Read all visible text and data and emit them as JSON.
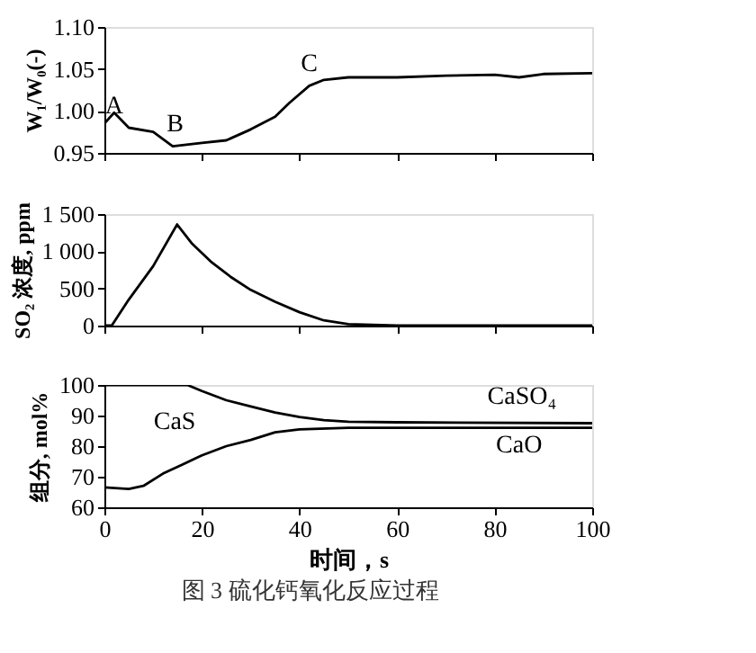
{
  "chart_data": [
    {
      "type": "line",
      "ylabel": "W₁/W₀(-)",
      "xlim": [
        0,
        100
      ],
      "xticks": [
        0,
        20,
        40,
        60,
        80,
        100
      ],
      "ylim": [
        0.95,
        1.1
      ],
      "yticks": [
        {
          "value": 0.95,
          "label": "0.95"
        },
        {
          "value": 1.0,
          "label": "1.00"
        },
        {
          "value": 1.05,
          "label": "1.05"
        },
        {
          "value": 1.1,
          "label": "1.10"
        }
      ],
      "tick_labels": "y",
      "grid": false,
      "x": [
        0,
        2,
        5,
        10,
        14,
        20,
        25,
        30,
        35,
        38,
        42,
        45,
        50,
        60,
        70,
        80,
        85,
        90,
        100
      ],
      "series": [
        {
          "color": "#000000",
          "values": [
            0.985,
            0.998,
            0.98,
            0.975,
            0.958,
            0.962,
            0.965,
            0.978,
            0.993,
            1.01,
            1.03,
            1.037,
            1.04,
            1.04,
            1.042,
            1.043,
            1.04,
            1.044,
            1.045
          ]
        }
      ],
      "annotations": [
        "A",
        "B",
        "C"
      ]
    },
    {
      "type": "line",
      "ylabel": "SO₂ 浓度, ppm",
      "xlim": [
        0,
        100
      ],
      "xticks": [
        0,
        20,
        40,
        60,
        80,
        100
      ],
      "ylim": [
        0,
        1500
      ],
      "yticks": [
        0,
        500,
        {
          "value": 1000,
          "label": "1 000"
        },
        {
          "value": 1500,
          "label": "1 500"
        }
      ],
      "tick_labels": "y",
      "grid": false,
      "x": [
        0,
        1.5,
        5,
        10,
        14.9,
        18,
        22,
        26,
        30,
        35,
        40,
        45,
        50,
        60,
        100
      ],
      "series": [
        {
          "color": "#000000",
          "values": [
            0,
            0,
            350,
            800,
            1360,
            1100,
            850,
            650,
            480,
            320,
            180,
            70,
            20,
            0,
            0
          ]
        }
      ]
    },
    {
      "type": "line",
      "ylabel": "组分, mol%",
      "xlabel": "时间，s",
      "xlim": [
        0,
        100
      ],
      "xticks": [
        0,
        20,
        40,
        60,
        80,
        100
      ],
      "ylim": [
        60,
        100
      ],
      "yticks": [
        60,
        70,
        80,
        90,
        100
      ],
      "grid": false,
      "series": [
        {
          "color": "#000000",
          "x": [
            0,
            5,
            8,
            12,
            16,
            20,
            25,
            30,
            35,
            40,
            50,
            100
          ],
          "values": [
            66.5,
            66,
            67,
            71,
            74,
            77,
            80,
            82,
            84.5,
            85.5,
            86,
            86
          ]
        },
        {
          "color": "#000000",
          "x": [
            0,
            17,
            20,
            25,
            30,
            35,
            40,
            45,
            50,
            60,
            100
          ],
          "values": [
            100,
            100,
            98,
            95,
            93,
            91,
            89.5,
            88.5,
            88,
            87.8,
            87.5
          ]
        }
      ],
      "annotations": [
        "CaS",
        "CaSO₄",
        "CaO",
        "图 3   硫化钙氧化反应过程"
      ]
    }
  ]
}
